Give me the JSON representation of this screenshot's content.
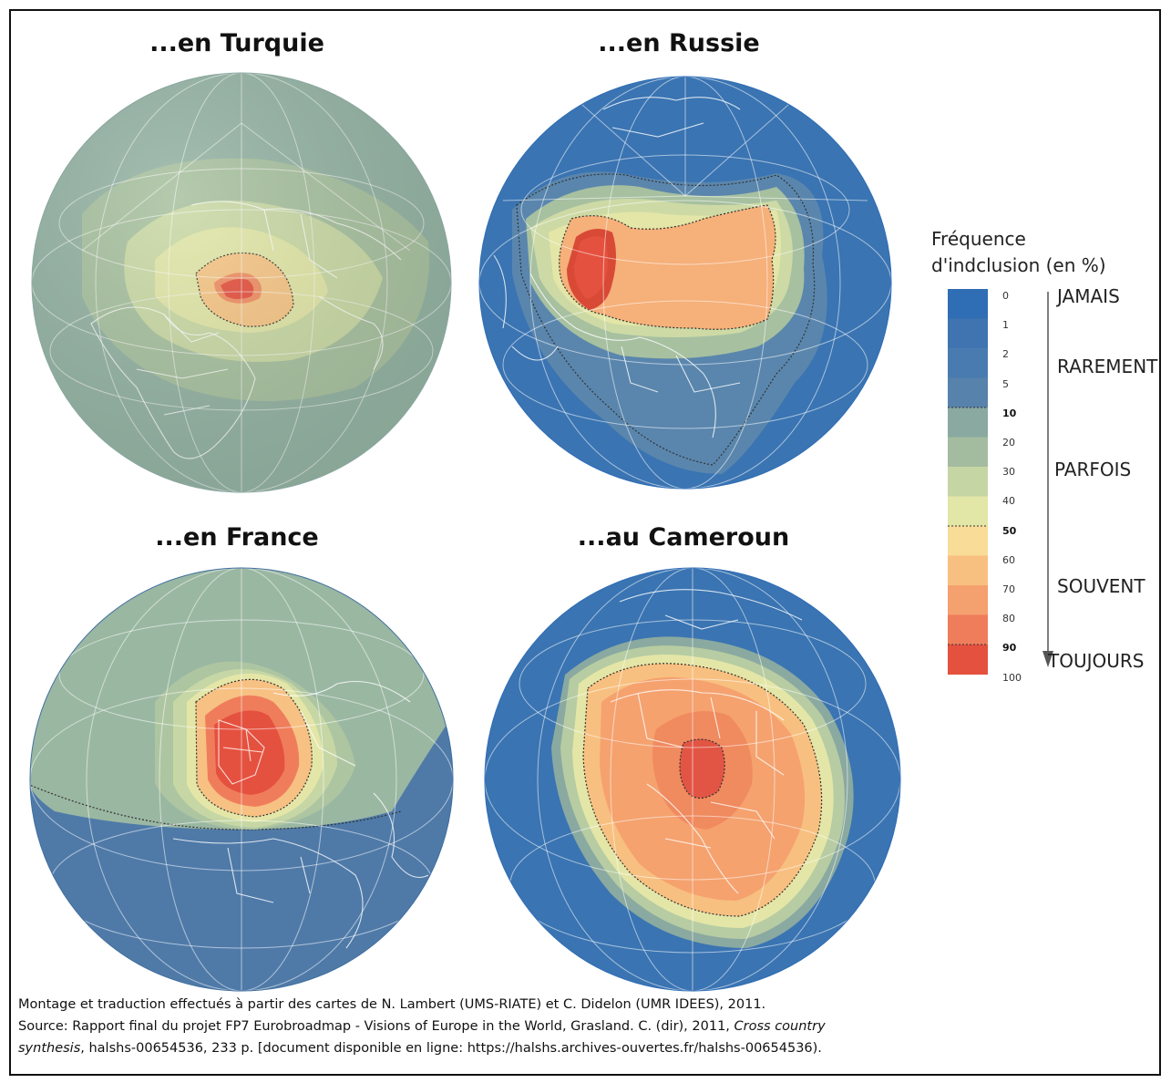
{
  "maps": [
    {
      "title": "...en Turquie",
      "base_color": "#96b4a2",
      "outline_color": "#ffffff"
    },
    {
      "title": "...en Russie",
      "base_color": "#3a74b2",
      "outline_color": "#ffffff"
    },
    {
      "title": "...en France",
      "base_color": "#4f7aa8",
      "outline_color": "#ffffff"
    },
    {
      "title": "...au Cameroun",
      "base_color": "#3a74b2",
      "outline_color": "#ffffff"
    }
  ],
  "legend": {
    "title_line1": "Fréquence",
    "title_line2": "d'indclusion (en %)",
    "ticks": [
      "0",
      "1",
      "2",
      "5",
      "10",
      "20",
      "30",
      "40",
      "50",
      "60",
      "70",
      "80",
      "90",
      "100"
    ],
    "colors": [
      "#2f6db5",
      "#3f74b1",
      "#4a7bb0",
      "#5782ab",
      "#8aa9a0",
      "#a3bc9f",
      "#c5d6a4",
      "#e2e6a6",
      "#f8dc97",
      "#f8c080",
      "#f5a06f",
      "#ef7d5c",
      "#e5513f"
    ],
    "categories": [
      "JAMAIS",
      "RAREMENT",
      "PARFOIS",
      "SOUVENT",
      "TOUJOURS"
    ]
  },
  "caption": {
    "line1": "Montage et traduction effectués à partir des cartes de N. Lambert (UMS-RIATE) et C. Didelon (UMR IDEES), 2011.",
    "line2_a": "Source: Rapport final du projet FP7 Eurobroadmap - Visions of Europe in the World, Grasland. C. (dir), 2011, ",
    "line2_b": "Cross country",
    "line3_a": "synthesis",
    "line3_b": ", halshs-00654536, 233 p. [document disponible en ligne: https://halshs.archives-ouvertes.fr/halshs-00654536)."
  }
}
